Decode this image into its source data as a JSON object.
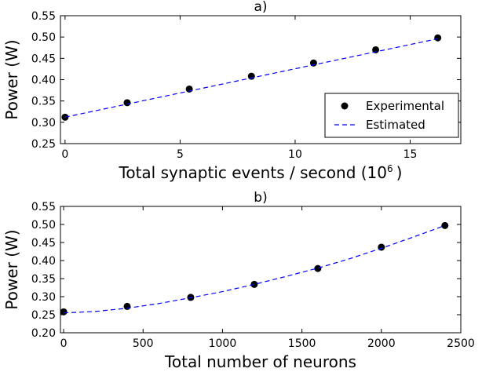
{
  "chart_data": [
    {
      "type": "scatter",
      "title": "a)",
      "xlabel": "Total synaptic events / second (10",
      "xlabel_sup": "6",
      "xlabel_suffix": ")",
      "ylabel": "Power (W)",
      "xlim": [
        -0.2,
        17.2
      ],
      "ylim": [
        0.25,
        0.55
      ],
      "xticks": [
        0,
        5,
        10,
        15
      ],
      "yticks": [
        0.25,
        0.3,
        0.35,
        0.4,
        0.45,
        0.5,
        0.55
      ],
      "legend": {
        "placement": "lower-right",
        "entries": [
          "Experimental",
          "Estimated"
        ]
      },
      "series": [
        {
          "name": "Experimental",
          "kind": "points",
          "color": "#000000",
          "x": [
            0,
            2.7,
            5.4,
            8.1,
            10.8,
            13.5,
            16.2
          ],
          "y": [
            0.312,
            0.346,
            0.378,
            0.408,
            0.439,
            0.47,
            0.498
          ]
        },
        {
          "name": "Estimated",
          "kind": "dashed-line",
          "color": "#0000ff",
          "x": [
            0,
            16.2
          ],
          "y": [
            0.312,
            0.496
          ]
        }
      ]
    },
    {
      "type": "scatter",
      "title": "b)",
      "xlabel": "Total number of neurons",
      "ylabel": "Power (W)",
      "xlim": [
        -20,
        2500
      ],
      "ylim": [
        0.2,
        0.55
      ],
      "xticks": [
        0,
        500,
        1000,
        1500,
        2000,
        2500
      ],
      "yticks": [
        0.2,
        0.25,
        0.3,
        0.35,
        0.4,
        0.45,
        0.5,
        0.55
      ],
      "series": [
        {
          "name": "Experimental",
          "kind": "points",
          "color": "#000000",
          "x": [
            0,
            400,
            800,
            1200,
            1600,
            2000,
            2400
          ],
          "y": [
            0.258,
            0.273,
            0.298,
            0.334,
            0.378,
            0.437,
            0.497
          ]
        },
        {
          "name": "Estimated",
          "kind": "dashed-line",
          "color": "#0000ff",
          "x": [
            0,
            200,
            400,
            600,
            800,
            1000,
            1200,
            1400,
            1600,
            1800,
            2000,
            2200,
            2400
          ],
          "y": [
            0.255,
            0.259,
            0.268,
            0.281,
            0.297,
            0.314,
            0.334,
            0.356,
            0.379,
            0.405,
            0.434,
            0.465,
            0.497
          ]
        }
      ]
    }
  ]
}
